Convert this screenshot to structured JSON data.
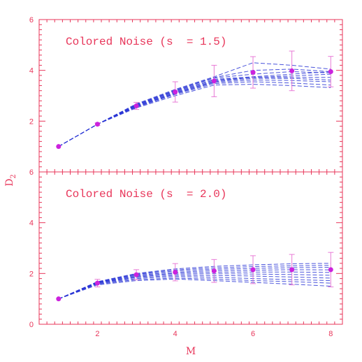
{
  "chart_data": [
    {
      "type": "line",
      "title": "Colored Noise (s  = 1.5)",
      "xlabel": "M",
      "ylabel": "D2",
      "xlim": [
        0.5,
        8.3
      ],
      "ylim": [
        0,
        6
      ],
      "x": [
        1,
        2,
        3,
        4,
        5,
        6,
        7,
        8
      ],
      "series": [
        {
          "values": [
            1.0,
            1.88,
            2.52,
            3.0,
            3.42,
            3.45,
            3.4,
            3.32
          ]
        },
        {
          "values": [
            1.0,
            1.88,
            2.55,
            3.05,
            3.48,
            3.55,
            3.5,
            3.42
          ]
        },
        {
          "values": [
            1.0,
            1.88,
            2.57,
            3.08,
            3.52,
            3.62,
            3.6,
            3.55
          ]
        },
        {
          "values": [
            1.0,
            1.88,
            2.58,
            3.1,
            3.55,
            3.68,
            3.68,
            3.62
          ]
        },
        {
          "values": [
            1.0,
            1.88,
            2.6,
            3.12,
            3.58,
            3.72,
            3.72,
            3.72
          ]
        },
        {
          "values": [
            1.0,
            1.88,
            2.62,
            3.15,
            3.62,
            3.72,
            3.78,
            3.85
          ]
        },
        {
          "values": [
            1.0,
            1.88,
            2.63,
            3.18,
            3.65,
            3.75,
            3.85,
            3.95
          ]
        },
        {
          "values": [
            1.0,
            1.88,
            2.65,
            3.2,
            3.7,
            3.85,
            3.95,
            3.9
          ]
        },
        {
          "values": [
            1.0,
            1.88,
            2.66,
            3.22,
            3.72,
            4.0,
            4.05,
            3.95
          ]
        },
        {
          "values": [
            1.0,
            1.88,
            2.68,
            3.25,
            3.75,
            4.3,
            4.2,
            4.05
          ]
        }
      ],
      "means": [
        1.0,
        1.88,
        2.6,
        3.15,
        3.58,
        3.92,
        3.98,
        3.95
      ],
      "errors": [
        0.0,
        0.05,
        0.14,
        0.4,
        0.62,
        0.62,
        0.78,
        0.6
      ]
    },
    {
      "type": "line",
      "title": "Colored Noise (s  = 2.0)",
      "xlabel": "M",
      "ylabel": "D2",
      "xlim": [
        0.5,
        8.3
      ],
      "ylim": [
        0,
        6
      ],
      "x": [
        1,
        2,
        3,
        4,
        5,
        6,
        7,
        8
      ],
      "series": [
        {
          "values": [
            1.0,
            1.55,
            1.72,
            1.78,
            1.72,
            1.65,
            1.58,
            1.5
          ]
        },
        {
          "values": [
            1.0,
            1.58,
            1.76,
            1.82,
            1.78,
            1.72,
            1.68,
            1.62
          ]
        },
        {
          "values": [
            1.0,
            1.6,
            1.8,
            1.88,
            1.85,
            1.8,
            1.76,
            1.72
          ]
        },
        {
          "values": [
            1.0,
            1.62,
            1.84,
            1.92,
            1.92,
            1.9,
            1.86,
            1.82
          ]
        },
        {
          "values": [
            1.0,
            1.63,
            1.87,
            1.97,
            1.99,
            1.98,
            1.96,
            1.93
          ]
        },
        {
          "values": [
            1.0,
            1.64,
            1.9,
            2.01,
            2.05,
            2.06,
            2.06,
            2.04
          ]
        },
        {
          "values": [
            1.0,
            1.65,
            1.93,
            2.05,
            2.11,
            2.13,
            2.15,
            2.14
          ]
        },
        {
          "values": [
            1.0,
            1.66,
            1.96,
            2.1,
            2.17,
            2.2,
            2.23,
            2.24
          ]
        },
        {
          "values": [
            1.0,
            1.67,
            1.98,
            2.14,
            2.22,
            2.27,
            2.3,
            2.32
          ]
        },
        {
          "values": [
            1.0,
            1.68,
            2.0,
            2.18,
            2.28,
            2.34,
            2.38,
            2.4
          ]
        }
      ],
      "means": [
        1.0,
        1.62,
        1.95,
        2.05,
        2.1,
        2.15,
        2.15,
        2.15
      ],
      "errors": [
        0.0,
        0.15,
        0.2,
        0.34,
        0.45,
        0.55,
        0.6,
        0.68
      ]
    }
  ],
  "axes": {
    "x_ticks": [
      "2",
      "4",
      "6",
      "8"
    ],
    "y_ticks_top": [
      "2",
      "4",
      "6"
    ],
    "y_ticks_bottom": [
      "0",
      "2",
      "4",
      "6"
    ],
    "xlabel": "M",
    "ylabel_main": "D",
    "ylabel_sub": "2"
  },
  "colors": {
    "axis": "#e8365a",
    "lines": "#2a36d6",
    "points": "#cc22dd",
    "errorbars": "#e87ad6"
  }
}
